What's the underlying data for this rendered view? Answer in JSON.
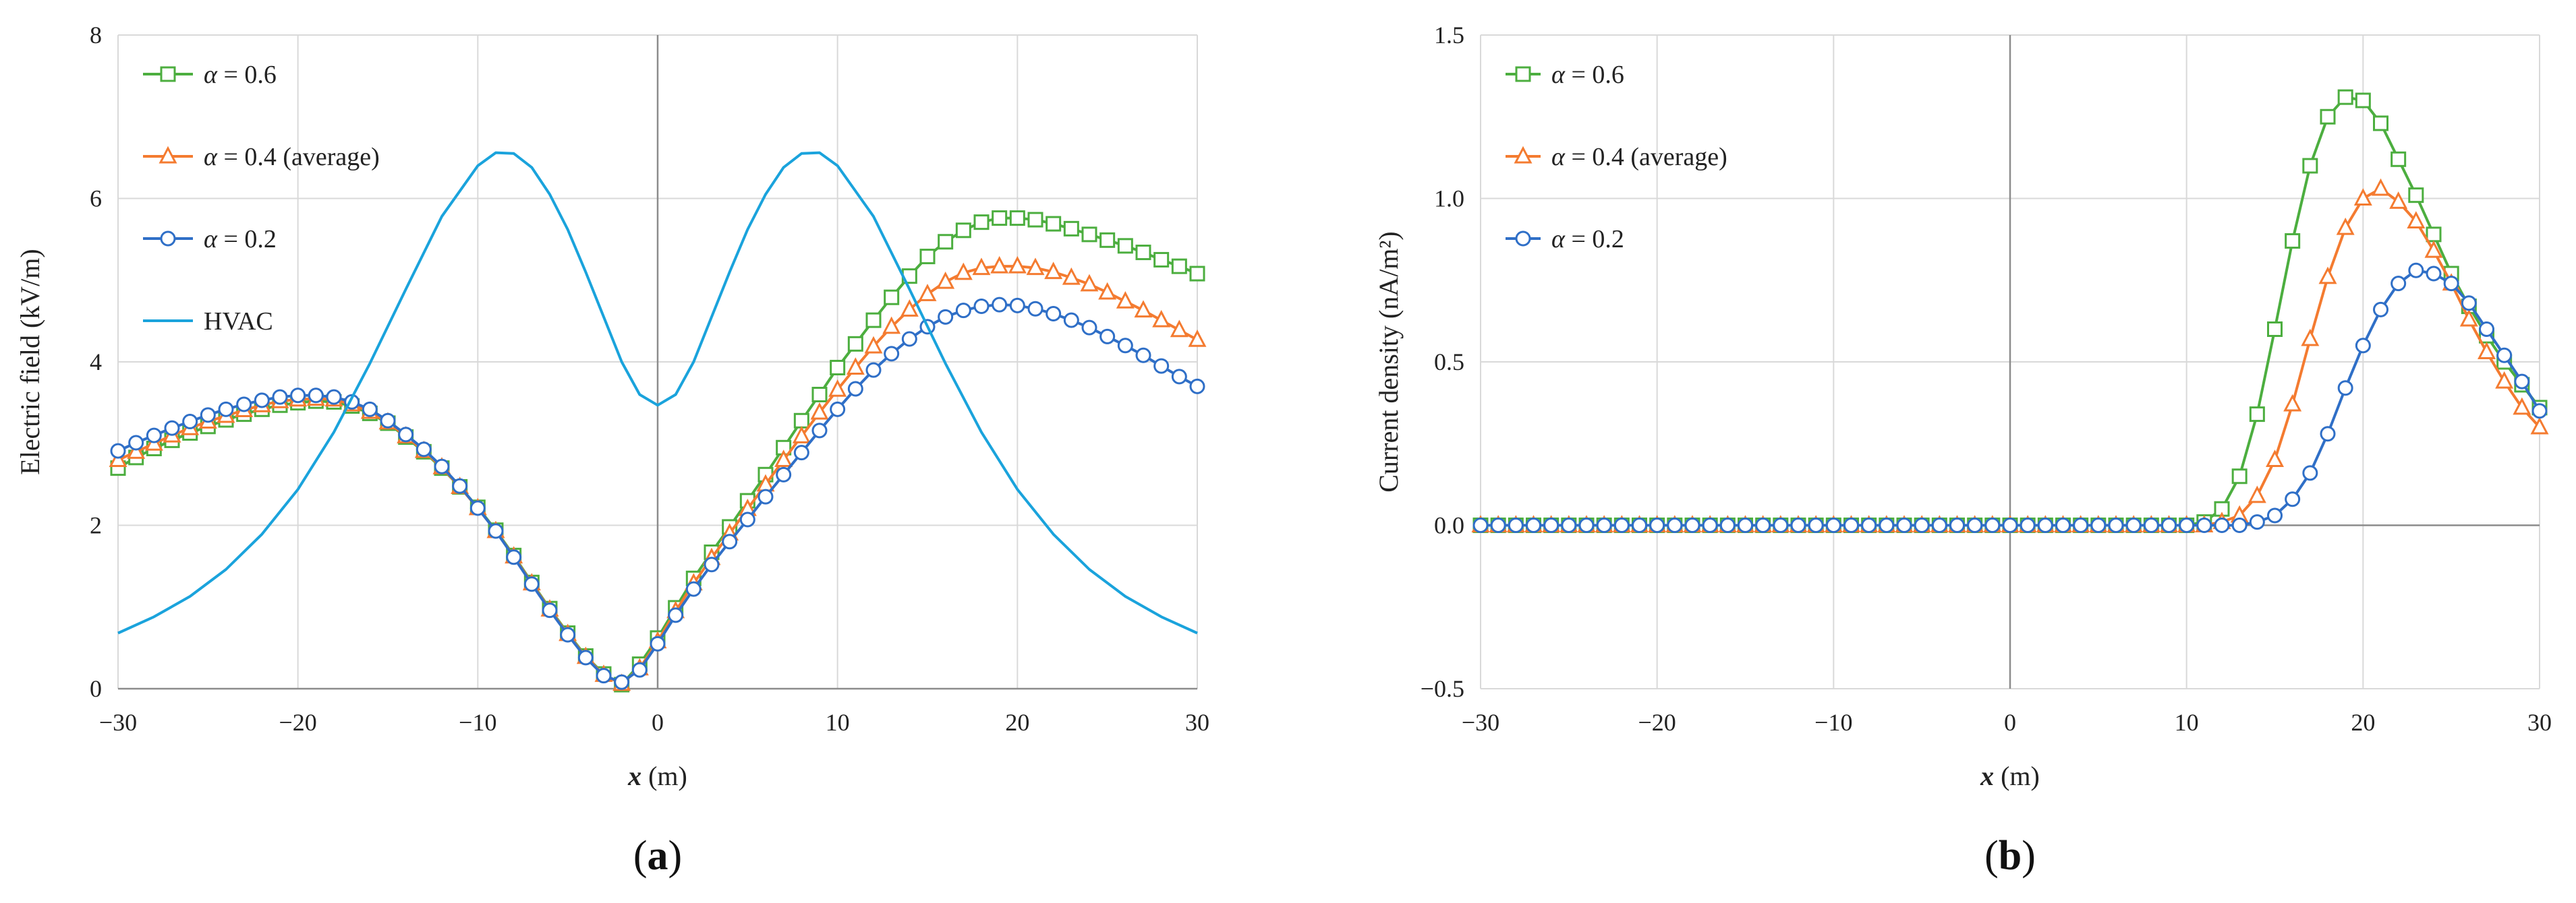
{
  "chart_data": [
    {
      "type": "line",
      "panel_label_parts": [
        "(",
        "a",
        ")"
      ],
      "xlabel_parts": [
        "x",
        " (m)"
      ],
      "ylabel": "Electric field (kV/m)",
      "xlim": [
        -30,
        30
      ],
      "ylim": [
        0,
        8
      ],
      "xticks": [
        -30,
        -20,
        -10,
        0,
        10,
        20,
        30
      ],
      "yticks": [
        0,
        2,
        4,
        6,
        8
      ],
      "xtick_labels": [
        "−30",
        "−20",
        "−10",
        "0",
        "10",
        "20",
        "30"
      ],
      "ytick_labels": [
        "0",
        "2",
        "4",
        "6",
        "8"
      ],
      "legend_position": "top-left",
      "series": [
        {
          "name": "α = 0.6",
          "label_symbol": "α",
          "label_rest": " = 0.6",
          "color": "#4cae3f",
          "marker": "square",
          "x": [
            -30,
            -29,
            -28,
            -27,
            -26,
            -25,
            -24,
            -23,
            -22,
            -21,
            -20,
            -19,
            -18,
            -17,
            -16,
            -15,
            -14,
            -13,
            -12,
            -11,
            -10,
            -9,
            -8,
            -7,
            -6,
            -5,
            -4,
            -3,
            -2,
            -1,
            0,
            1,
            2,
            3,
            4,
            5,
            6,
            7,
            8,
            9,
            10,
            11,
            12,
            13,
            14,
            15,
            16,
            17,
            18,
            19,
            20,
            21,
            22,
            23,
            24,
            25,
            26,
            27,
            28,
            29,
            30
          ],
          "y": [
            2.7,
            2.83,
            2.94,
            3.04,
            3.13,
            3.21,
            3.29,
            3.36,
            3.42,
            3.47,
            3.5,
            3.52,
            3.51,
            3.46,
            3.37,
            3.25,
            3.08,
            2.9,
            2.7,
            2.47,
            2.22,
            1.94,
            1.63,
            1.3,
            0.98,
            0.68,
            0.4,
            0.18,
            0.05,
            0.3,
            0.62,
            0.99,
            1.35,
            1.67,
            1.98,
            2.3,
            2.62,
            2.95,
            3.28,
            3.6,
            3.93,
            4.22,
            4.51,
            4.79,
            5.05,
            5.29,
            5.47,
            5.61,
            5.71,
            5.76,
            5.76,
            5.74,
            5.69,
            5.63,
            5.56,
            5.49,
            5.42,
            5.34,
            5.25,
            5.17,
            5.08
          ]
        },
        {
          "name": "α = 0.4 (average)",
          "label_symbol": "α",
          "label_rest": " = 0.4 (average)",
          "color": "#f47b30",
          "marker": "triangle",
          "x": [
            -30,
            -29,
            -28,
            -27,
            -26,
            -25,
            -24,
            -23,
            -22,
            -21,
            -20,
            -19,
            -18,
            -17,
            -16,
            -15,
            -14,
            -13,
            -12,
            -11,
            -10,
            -9,
            -8,
            -7,
            -6,
            -5,
            -4,
            -3,
            -2,
            -1,
            0,
            1,
            2,
            3,
            4,
            5,
            6,
            7,
            8,
            9,
            10,
            11,
            12,
            13,
            14,
            15,
            16,
            17,
            18,
            19,
            20,
            21,
            22,
            23,
            24,
            25,
            26,
            27,
            28,
            29,
            30
          ],
          "y": [
            2.8,
            2.9,
            3.0,
            3.1,
            3.19,
            3.27,
            3.34,
            3.41,
            3.47,
            3.52,
            3.54,
            3.55,
            3.54,
            3.48,
            3.39,
            3.26,
            3.09,
            2.91,
            2.71,
            2.47,
            2.21,
            1.93,
            1.62,
            1.29,
            0.97,
            0.67,
            0.39,
            0.17,
            0.06,
            0.25,
            0.58,
            0.95,
            1.29,
            1.6,
            1.9,
            2.2,
            2.5,
            2.8,
            3.09,
            3.38,
            3.66,
            3.93,
            4.19,
            4.43,
            4.64,
            4.83,
            4.98,
            5.09,
            5.15,
            5.17,
            5.17,
            5.15,
            5.1,
            5.03,
            4.95,
            4.85,
            4.74,
            4.63,
            4.51,
            4.39,
            4.27
          ]
        },
        {
          "name": "α = 0.2",
          "label_symbol": "α",
          "label_rest": " = 0.2",
          "color": "#2f6fc7",
          "marker": "circle",
          "x": [
            -30,
            -29,
            -28,
            -27,
            -26,
            -25,
            -24,
            -23,
            -22,
            -21,
            -20,
            -19,
            -18,
            -17,
            -16,
            -15,
            -14,
            -13,
            -12,
            -11,
            -10,
            -9,
            -8,
            -7,
            -6,
            -5,
            -4,
            -3,
            -2,
            -1,
            0,
            1,
            2,
            3,
            4,
            5,
            6,
            7,
            8,
            9,
            10,
            11,
            12,
            13,
            14,
            15,
            16,
            17,
            18,
            19,
            20,
            21,
            22,
            23,
            24,
            25,
            26,
            27,
            28,
            29,
            30
          ],
          "y": [
            2.91,
            3.01,
            3.1,
            3.19,
            3.27,
            3.35,
            3.42,
            3.48,
            3.53,
            3.57,
            3.59,
            3.59,
            3.57,
            3.51,
            3.42,
            3.28,
            3.11,
            2.93,
            2.72,
            2.48,
            2.21,
            1.93,
            1.61,
            1.28,
            0.96,
            0.66,
            0.38,
            0.16,
            0.08,
            0.23,
            0.55,
            0.9,
            1.22,
            1.52,
            1.8,
            2.07,
            2.35,
            2.62,
            2.89,
            3.16,
            3.42,
            3.67,
            3.9,
            4.1,
            4.28,
            4.43,
            4.55,
            4.63,
            4.68,
            4.7,
            4.69,
            4.65,
            4.59,
            4.51,
            4.42,
            4.31,
            4.2,
            4.08,
            3.95,
            3.82,
            3.7
          ]
        },
        {
          "name": "HVAC",
          "label_symbol": "",
          "label_rest": "HVAC",
          "color": "#1aa3dc",
          "marker": "none",
          "x": [
            -30,
            -28,
            -26,
            -24,
            -22,
            -20,
            -18,
            -16,
            -14,
            -12,
            -10,
            -9,
            -8,
            -7,
            -6,
            -5,
            -4,
            -3,
            -2,
            -1,
            0,
            1,
            2,
            3,
            4,
            5,
            6,
            7,
            8,
            9,
            10,
            12,
            14,
            16,
            18,
            20,
            22,
            24,
            26,
            28,
            30
          ],
          "y": [
            0.68,
            0.88,
            1.13,
            1.46,
            1.89,
            2.44,
            3.14,
            3.98,
            4.89,
            5.78,
            6.4,
            6.56,
            6.55,
            6.38,
            6.05,
            5.62,
            5.1,
            4.55,
            4.0,
            3.6,
            3.47,
            3.6,
            4.0,
            4.55,
            5.1,
            5.62,
            6.05,
            6.38,
            6.55,
            6.56,
            6.4,
            5.78,
            4.89,
            3.98,
            3.14,
            2.44,
            1.89,
            1.46,
            1.13,
            0.88,
            0.68
          ]
        }
      ]
    },
    {
      "type": "line",
      "panel_label_parts": [
        "(",
        "b",
        ")"
      ],
      "xlabel_parts": [
        "x",
        " (m)"
      ],
      "ylabel": "Current density (nA/m²)",
      "xlim": [
        -30,
        30
      ],
      "ylim": [
        -0.5,
        1.5
      ],
      "xticks": [
        -30,
        -20,
        -10,
        0,
        10,
        20,
        30
      ],
      "yticks": [
        -0.5,
        0.0,
        0.5,
        1.0,
        1.5
      ],
      "xtick_labels": [
        "−30",
        "−20",
        "−10",
        "0",
        "10",
        "20",
        "30"
      ],
      "ytick_labels": [
        "−0.5",
        "0.0",
        "0.5",
        "1.0",
        "1.5"
      ],
      "legend_position": "top-left",
      "series": [
        {
          "name": "α = 0.6",
          "label_symbol": "α",
          "label_rest": "  = 0.6",
          "color": "#4cae3f",
          "marker": "square",
          "x": [
            -30,
            -29,
            -28,
            -27,
            -26,
            -25,
            -24,
            -23,
            -22,
            -21,
            -20,
            -19,
            -18,
            -17,
            -16,
            -15,
            -14,
            -13,
            -12,
            -11,
            -10,
            -9,
            -8,
            -7,
            -6,
            -5,
            -4,
            -3,
            -2,
            -1,
            0,
            1,
            2,
            3,
            4,
            5,
            6,
            7,
            8,
            9,
            10,
            11,
            12,
            13,
            14,
            15,
            16,
            17,
            18,
            19,
            20,
            21,
            22,
            23,
            24,
            25,
            26,
            27,
            28,
            29,
            30
          ],
          "y": [
            0,
            0,
            0,
            0,
            0,
            0,
            0,
            0,
            0,
            0,
            0,
            0,
            0,
            0,
            0,
            0,
            0,
            0,
            0,
            0,
            0,
            0,
            0,
            0,
            0,
            0,
            0,
            0,
            0,
            0,
            0,
            0,
            0,
            0,
            0,
            0,
            0,
            0,
            0,
            0,
            0,
            0.01,
            0.05,
            0.15,
            0.34,
            0.6,
            0.87,
            1.1,
            1.25,
            1.31,
            1.3,
            1.23,
            1.12,
            1.01,
            0.89,
            0.77,
            0.67,
            0.58,
            0.5,
            0.43,
            0.36
          ]
        },
        {
          "name": "α = 0.4 (average)",
          "label_symbol": "α",
          "label_rest": "  = 0.4 (average)",
          "color": "#f47b30",
          "marker": "triangle",
          "x": [
            -30,
            -29,
            -28,
            -27,
            -26,
            -25,
            -24,
            -23,
            -22,
            -21,
            -20,
            -19,
            -18,
            -17,
            -16,
            -15,
            -14,
            -13,
            -12,
            -11,
            -10,
            -9,
            -8,
            -7,
            -6,
            -5,
            -4,
            -3,
            -2,
            -1,
            0,
            1,
            2,
            3,
            4,
            5,
            6,
            7,
            8,
            9,
            10,
            11,
            12,
            13,
            14,
            15,
            16,
            17,
            18,
            19,
            20,
            21,
            22,
            23,
            24,
            25,
            26,
            27,
            28,
            29,
            30
          ],
          "y": [
            0,
            0,
            0,
            0,
            0,
            0,
            0,
            0,
            0,
            0,
            0,
            0,
            0,
            0,
            0,
            0,
            0,
            0,
            0,
            0,
            0,
            0,
            0,
            0,
            0,
            0,
            0,
            0,
            0,
            0,
            0,
            0,
            0,
            0,
            0,
            0,
            0,
            0,
            0,
            0,
            0,
            0,
            0.01,
            0.03,
            0.09,
            0.2,
            0.37,
            0.57,
            0.76,
            0.91,
            1.0,
            1.03,
            0.99,
            0.93,
            0.84,
            0.74,
            0.63,
            0.53,
            0.44,
            0.36,
            0.3
          ]
        },
        {
          "name": "α = 0.2",
          "label_symbol": "α",
          "label_rest": "  = 0.2",
          "color": "#2f6fc7",
          "marker": "circle",
          "x": [
            -30,
            -29,
            -28,
            -27,
            -26,
            -25,
            -24,
            -23,
            -22,
            -21,
            -20,
            -19,
            -18,
            -17,
            -16,
            -15,
            -14,
            -13,
            -12,
            -11,
            -10,
            -9,
            -8,
            -7,
            -6,
            -5,
            -4,
            -3,
            -2,
            -1,
            0,
            1,
            2,
            3,
            4,
            5,
            6,
            7,
            8,
            9,
            10,
            11,
            12,
            13,
            14,
            15,
            16,
            17,
            18,
            19,
            20,
            21,
            22,
            23,
            24,
            25,
            26,
            27,
            28,
            29,
            30
          ],
          "y": [
            0,
            0,
            0,
            0,
            0,
            0,
            0,
            0,
            0,
            0,
            0,
            0,
            0,
            0,
            0,
            0,
            0,
            0,
            0,
            0,
            0,
            0,
            0,
            0,
            0,
            0,
            0,
            0,
            0,
            0,
            0,
            0,
            0,
            0,
            0,
            0,
            0,
            0,
            0,
            0,
            0,
            0,
            0,
            0,
            0.01,
            0.03,
            0.08,
            0.16,
            0.28,
            0.42,
            0.55,
            0.66,
            0.74,
            0.78,
            0.77,
            0.74,
            0.68,
            0.6,
            0.52,
            0.44,
            0.35
          ]
        }
      ]
    }
  ]
}
